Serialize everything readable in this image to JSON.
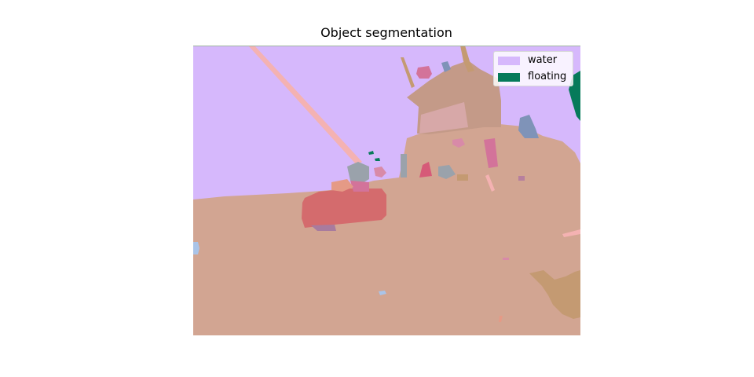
{
  "figure": {
    "title": "Object segmentation"
  },
  "legend": {
    "items": [
      {
        "label": "water",
        "color": "#d6b8fc"
      },
      {
        "label": "floating",
        "color": "#067a5a"
      }
    ]
  },
  "segments": {
    "water_color": "#d6b8fc",
    "ground_color": "#d2a592",
    "floating_color": "#067a5a",
    "boat_color": "#d46b6d",
    "cabin_color": "#c49a88",
    "rope_color": "#f4b2b2",
    "grey_blue_color": "#7f93b8",
    "pink_color": "#d3739a",
    "grey_color": "#9aa2ab",
    "tan_color": "#c49a72",
    "light_blue_color": "#aac4e8"
  }
}
